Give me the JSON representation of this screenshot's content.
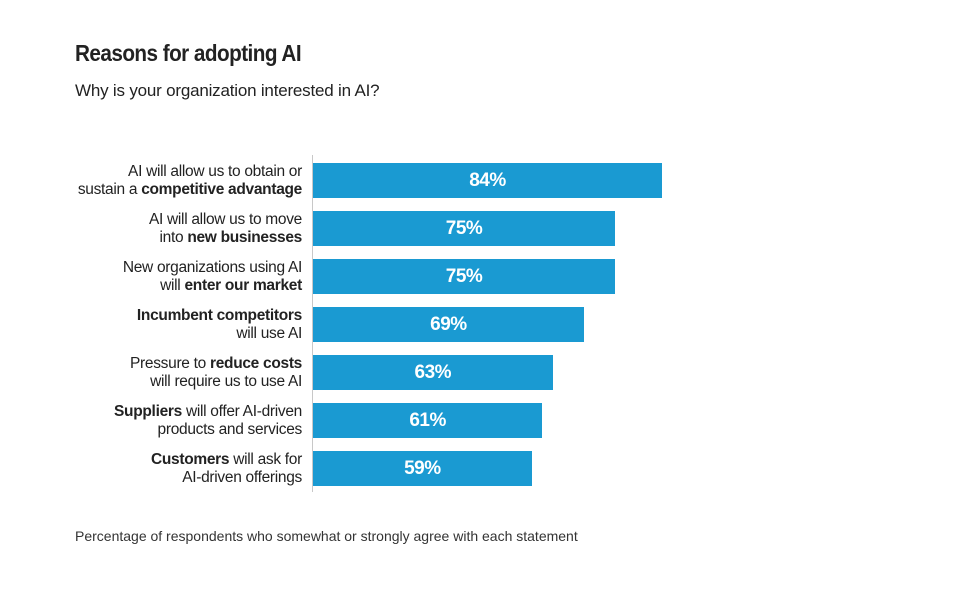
{
  "chart_data": {
    "type": "bar",
    "orientation": "horizontal",
    "title": "Reasons for adopting AI",
    "subtitle": "Why is your organization interested in AI?",
    "footnote": "Percentage of respondents who somewhat or strongly agree with each statement",
    "xlim": [
      17,
      84
    ],
    "grid": false,
    "bar_color": "#1a9ad2",
    "categories": [
      [
        [
          {
            "t": "AI will allow us to obtain or",
            "b": false
          }
        ],
        [
          {
            "t": "sustain a ",
            "b": false
          },
          {
            "t": "competitive advantage",
            "b": true
          }
        ]
      ],
      [
        [
          {
            "t": "AI will allow us to move",
            "b": false
          }
        ],
        [
          {
            "t": "into ",
            "b": false
          },
          {
            "t": "new businesses",
            "b": true
          }
        ]
      ],
      [
        [
          {
            "t": "New organizations using AI",
            "b": false
          }
        ],
        [
          {
            "t": "will ",
            "b": false
          },
          {
            "t": "enter our market",
            "b": true
          }
        ]
      ],
      [
        [
          {
            "t": "Incumbent competitors",
            "b": true
          }
        ],
        [
          {
            "t": "will use AI",
            "b": false
          }
        ]
      ],
      [
        [
          {
            "t": "Pressure to ",
            "b": false
          },
          {
            "t": "reduce costs",
            "b": true
          }
        ],
        [
          {
            "t": "will require us to use AI",
            "b": false
          }
        ]
      ],
      [
        [
          {
            "t": "Suppliers",
            "b": true
          },
          {
            "t": " will offer AI-driven",
            "b": false
          }
        ],
        [
          {
            "t": "products and services",
            "b": false
          }
        ]
      ],
      [
        [
          {
            "t": "Customers",
            "b": true
          },
          {
            "t": " will ask for",
            "b": false
          }
        ],
        [
          {
            "t": "AI-driven offerings",
            "b": false
          }
        ]
      ]
    ],
    "values": [
      84,
      75,
      75,
      69,
      63,
      61,
      59
    ],
    "value_labels": [
      "84%",
      "75%",
      "75%",
      "69%",
      "63%",
      "61%",
      "59%"
    ]
  }
}
